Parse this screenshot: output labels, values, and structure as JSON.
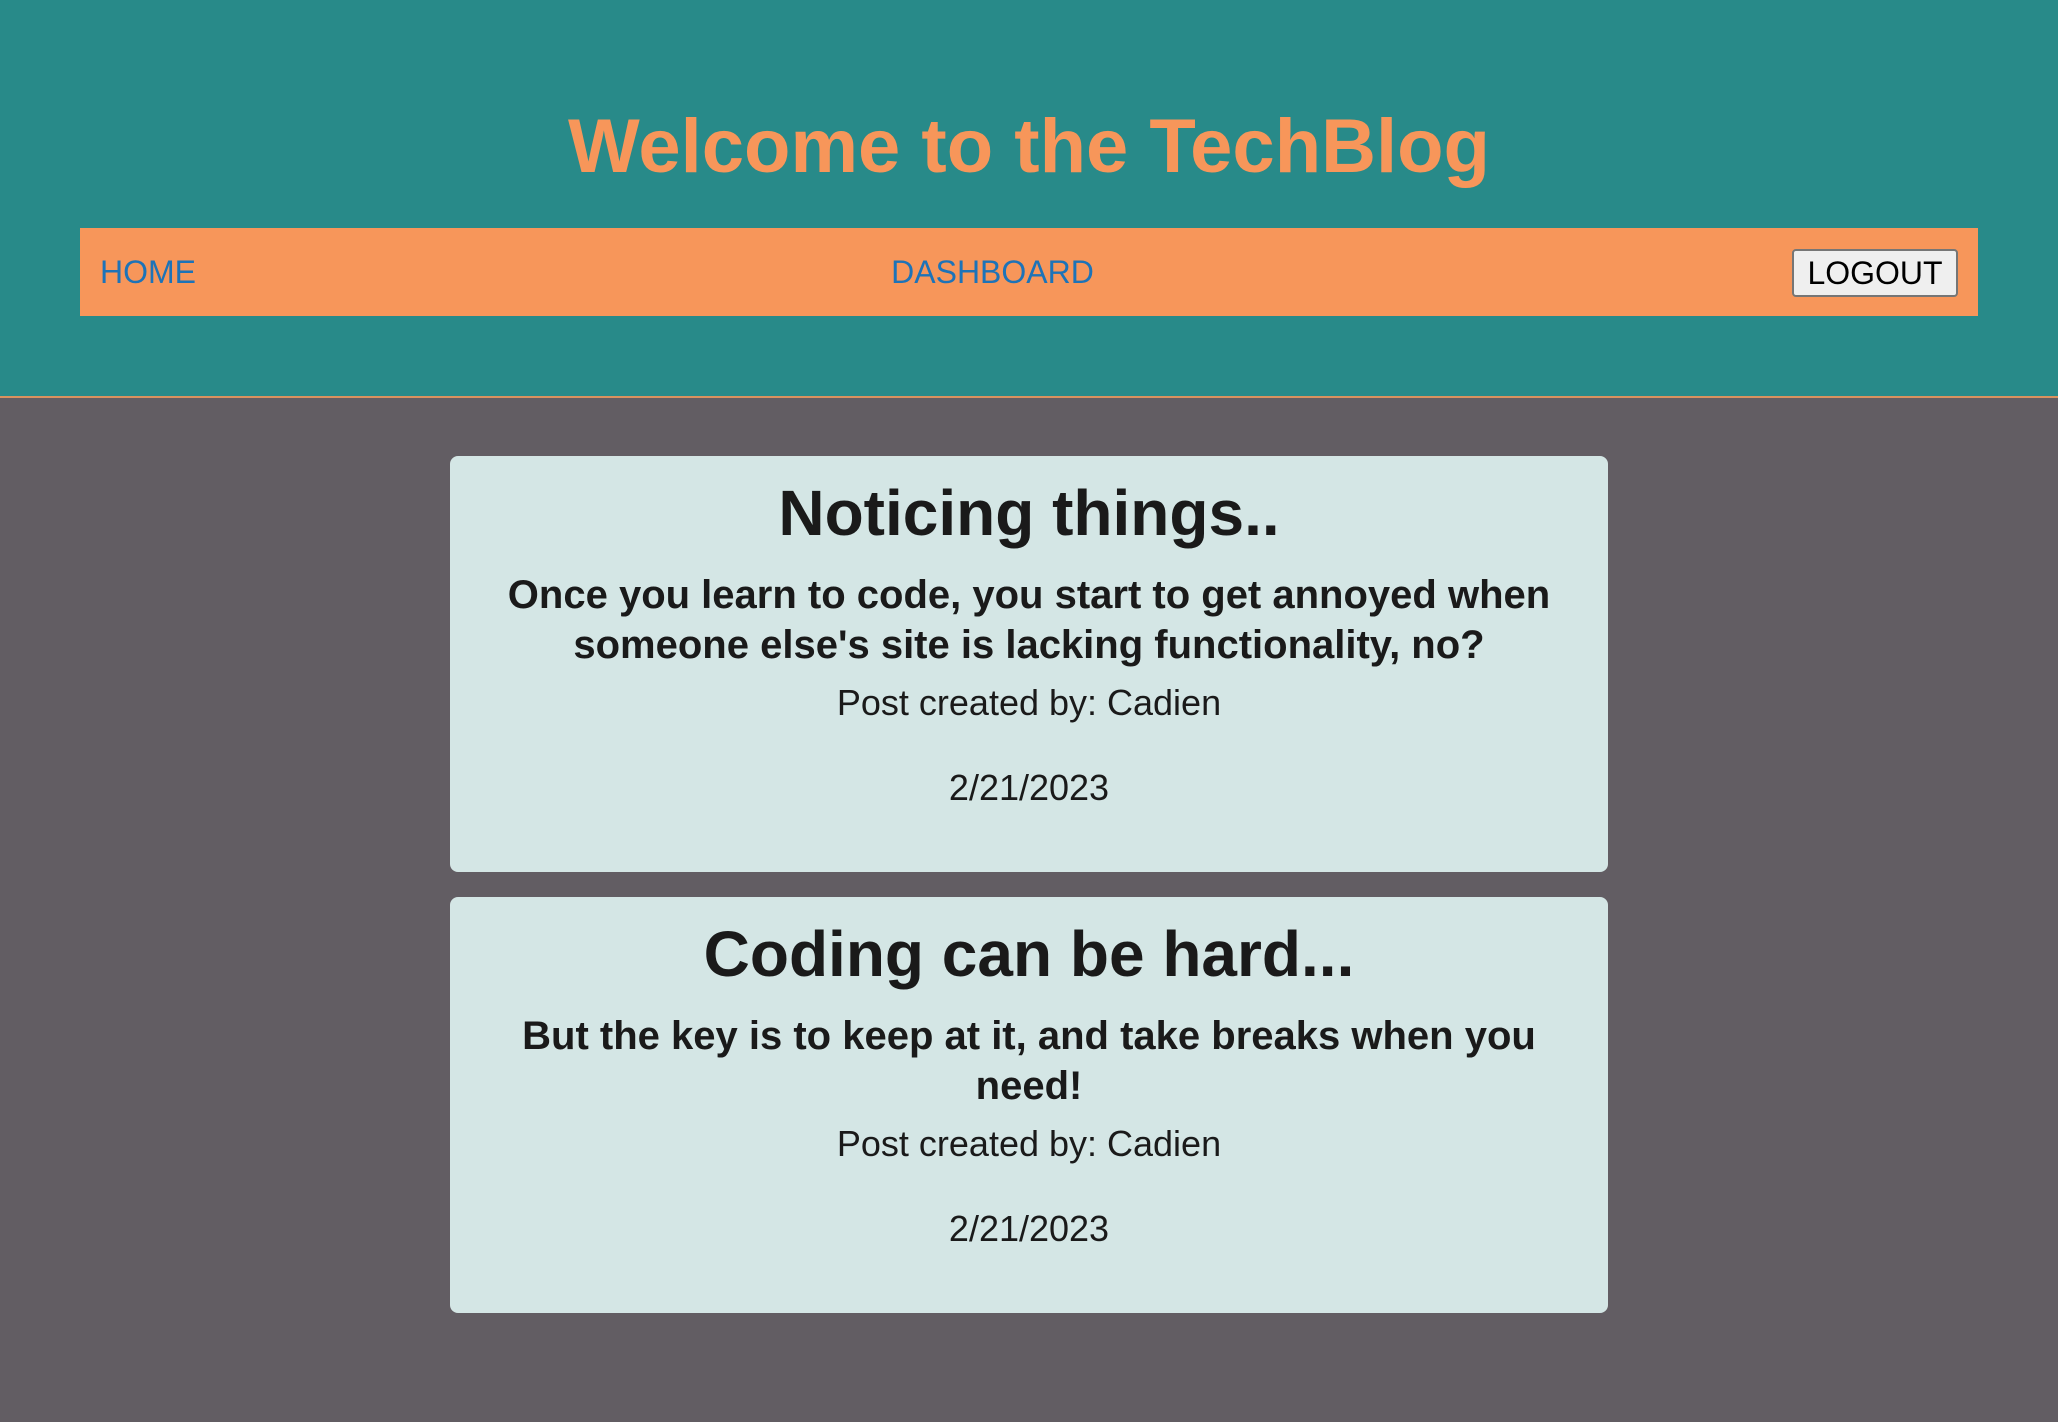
{
  "header": {
    "title": "Welcome to the TechBlog"
  },
  "nav": {
    "home_label": "HOME",
    "dashboard_label": "DASHBOARD",
    "logout_label": "LOGOUT"
  },
  "posts": [
    {
      "title": "Noticing things..",
      "body": "Once you learn to code, you start to get annoyed when someone else's site is lacking functionality, no?",
      "author_line": "Post created by: Cadien",
      "date": "2/21/2023"
    },
    {
      "title": "Coding can be hard...",
      "body": "But the key is to keep at it, and take breaks when you need!",
      "author_line": "Post created by: Cadien",
      "date": "2/21/2023"
    }
  ],
  "colors": {
    "header_background": "#288a89",
    "page_background": "#625d63",
    "accent_orange": "#f7965a",
    "nav_link": "#1d73b8",
    "card_background": "#d4e6e5"
  }
}
